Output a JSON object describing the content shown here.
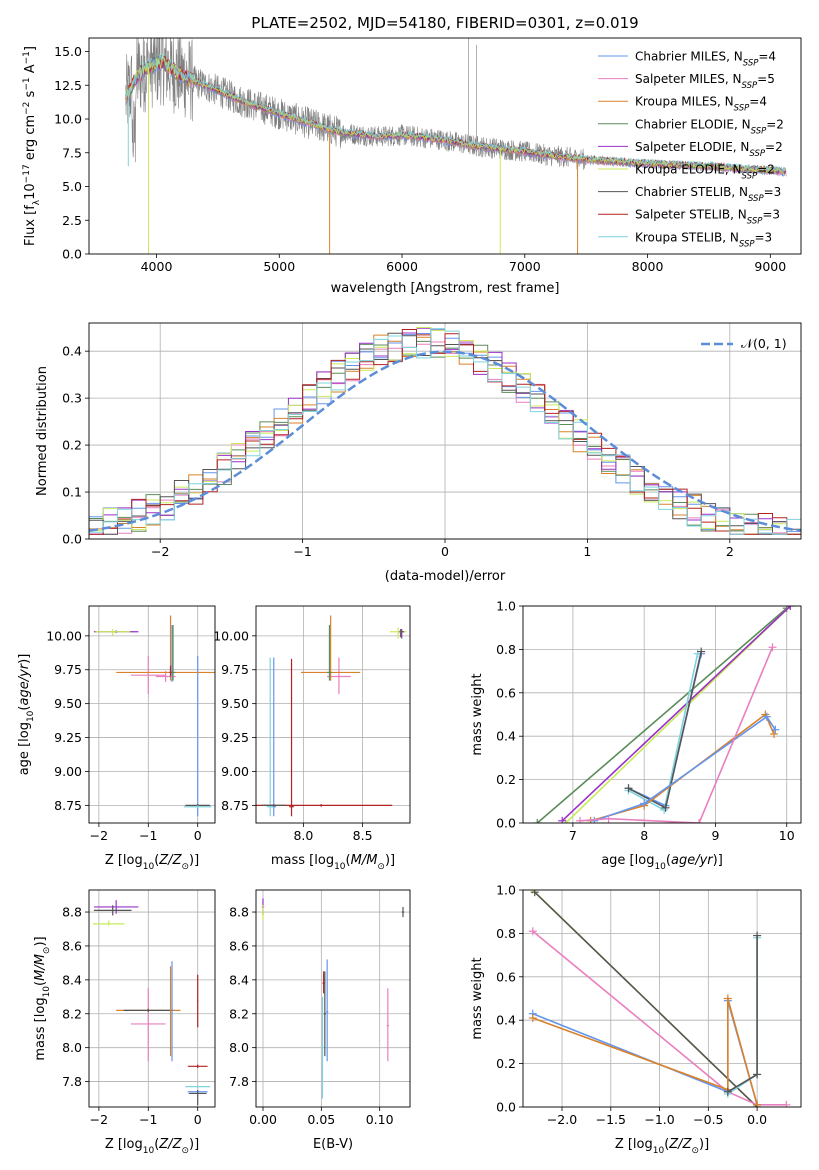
{
  "figure_title": "PLATE=2502, MJD=54180, FIBERID=0301, z=0.019",
  "colors": {
    "series": [
      "#6495ed",
      "#e97fbf",
      "#d9822b",
      "#5b8c5a",
      "#9b30c9",
      "#c9ea5a",
      "#555555",
      "#b22222",
      "#7fd3dd"
    ],
    "data": "#808080",
    "gaussian": "#5b8dd9",
    "grid": "#b0b0b0"
  },
  "chart_data": [
    {
      "id": "spectrum",
      "type": "line",
      "title": "PLATE=2502, MJD=54180, FIBERID=0301, z=0.019",
      "xlabel": "wavelength [Angstrom, rest frame]",
      "ylabel": "Flux [f_λ 10^-17 erg cm^-2 s^-1 A^-1]",
      "xlim": [
        3450,
        9250
      ],
      "ylim": [
        0,
        16
      ],
      "xticks": [
        "4000",
        "5000",
        "6000",
        "7000",
        "8000",
        "9000"
      ],
      "yticks": [
        "0.0",
        "2.5",
        "5.0",
        "7.5",
        "10.0",
        "12.5",
        "15.0"
      ],
      "legend_position": "top-right",
      "legend": [
        {
          "label": "Chabrier MILES, N",
          "sub": "SSP",
          "tail": "=4",
          "color": "#6495ed"
        },
        {
          "label": "Salpeter MILES, N",
          "sub": "SSP",
          "tail": "=5",
          "color": "#e97fbf"
        },
        {
          "label": "Kroupa MILES, N",
          "sub": "SSP",
          "tail": "=4",
          "color": "#d9822b"
        },
        {
          "label": "Chabrier ELODIE, N",
          "sub": "SSP",
          "tail": "=2",
          "color": "#5b8c5a"
        },
        {
          "label": "Salpeter ELODIE, N",
          "sub": "SSP",
          "tail": "=2",
          "color": "#9b30c9"
        },
        {
          "label": "Kroupa ELODIE, N",
          "sub": "SSP",
          "tail": "=2",
          "color": "#c9ea5a"
        },
        {
          "label": "Chabrier STELIB, N",
          "sub": "SSP",
          "tail": "=3",
          "color": "#555555"
        },
        {
          "label": "Salpeter STELIB, N",
          "sub": "SSP",
          "tail": "=3",
          "color": "#b22222"
        },
        {
          "label": "Kroupa STELIB, N",
          "sub": "SSP",
          "tail": "=3",
          "color": "#7fd3dd"
        }
      ],
      "continuum": [
        [
          3750,
          11.5
        ],
        [
          3850,
          13.3
        ],
        [
          3950,
          13.9
        ],
        [
          4050,
          14.2
        ],
        [
          4150,
          13.5
        ],
        [
          4300,
          12.8
        ],
        [
          4500,
          12.1
        ],
        [
          4700,
          11.3
        ],
        [
          5000,
          10.4
        ],
        [
          5200,
          9.8
        ],
        [
          5500,
          9.0
        ],
        [
          5800,
          8.7
        ],
        [
          6000,
          8.8
        ],
        [
          6300,
          8.5
        ],
        [
          6600,
          8.0
        ],
        [
          6900,
          7.7
        ],
        [
          7200,
          7.3
        ],
        [
          7500,
          7.0
        ],
        [
          7800,
          6.8
        ],
        [
          8200,
          6.6
        ],
        [
          8500,
          6.5
        ],
        [
          8800,
          6.3
        ],
        [
          9000,
          6.2
        ],
        [
          9100,
          6.1
        ]
      ],
      "model_breaks": [
        {
          "x": 3770,
          "to": 6.5,
          "color": "#7fd3dd"
        },
        {
          "x": 3935,
          "to": 0.0,
          "color": "#c9ea5a"
        },
        {
          "x": 5410,
          "to": 0.0,
          "color": "#d9822b"
        },
        {
          "x": 6800,
          "to": 0.0,
          "color": "#c9ea5a"
        },
        {
          "x": 7430,
          "to": 0.0,
          "color": "#d9822b"
        }
      ]
    },
    {
      "id": "residuals",
      "type": "step",
      "xlabel": "(data-model)/error",
      "ylabel": "Normed distribution",
      "xlim": [
        -2.5,
        2.5
      ],
      "ylim": [
        0,
        0.46
      ],
      "xticks": [
        "−2",
        "−1",
        "0",
        "1",
        "2"
      ],
      "yticks": [
        "0.0",
        "0.1",
        "0.2",
        "0.3",
        "0.4"
      ],
      "legend_position": "top-right",
      "legend_label": "𝒩(0, 1)",
      "gaussian": {
        "mean": 0,
        "sigma": 1
      },
      "bins": 50
    },
    {
      "id": "age_vs_Z",
      "type": "errorbar",
      "xlabel": "Z [log10(Z/Z⊙)]",
      "ylabel": "age  [log10(age/yr)]",
      "xlim": [
        -2.2,
        0.35
      ],
      "ylim": [
        8.62,
        10.22
      ],
      "xticks": [
        "−2",
        "−1",
        "0"
      ],
      "yticks": [
        "8.75",
        "9.00",
        "9.25",
        "9.50",
        "9.75",
        "10.00"
      ]
    },
    {
      "id": "age_vs_mass",
      "type": "errorbar",
      "xlabel": "mass [log10(M/M⊙)]",
      "ylabel": "",
      "xlim": [
        7.6,
        8.9
      ],
      "ylim": [
        8.62,
        10.22
      ],
      "xticks": [
        "8.0",
        "8.5"
      ],
      "yticks": [
        "8.75",
        "9.00",
        "9.25",
        "9.50",
        "9.75",
        "10.00"
      ]
    },
    {
      "id": "weight_vs_age",
      "type": "line",
      "xlabel": "age  [log10(age/yr)]",
      "ylabel": "mass weight",
      "xlim": [
        6.3,
        10.2
      ],
      "ylim": [
        0,
        1
      ],
      "xticks": [
        "7",
        "8",
        "9",
        "10"
      ],
      "yticks": [
        "0.0",
        "0.2",
        "0.4",
        "0.6",
        "0.8",
        "1.0"
      ]
    },
    {
      "id": "mass_vs_Z",
      "type": "errorbar",
      "xlabel": "Z [log10(Z/Z⊙)]",
      "ylabel": "mass [log10(M/M⊙)]",
      "xlim": [
        -2.2,
        0.35
      ],
      "ylim": [
        7.65,
        8.93
      ],
      "xticks": [
        "−2",
        "−1",
        "0"
      ],
      "yticks": [
        "7.8",
        "8.0",
        "8.2",
        "8.4",
        "8.6",
        "8.8"
      ]
    },
    {
      "id": "mass_vs_ebv",
      "type": "errorbar",
      "xlabel": "E(B-V)",
      "ylabel": "",
      "xlim": [
        -0.006,
        0.126
      ],
      "ylim": [
        7.65,
        8.93
      ],
      "xticks": [
        "0.00",
        "0.05",
        "0.10"
      ],
      "yticks": [
        "7.8",
        "8.0",
        "8.2",
        "8.4",
        "8.6",
        "8.8"
      ]
    },
    {
      "id": "weight_vs_Z",
      "type": "line",
      "xlabel": "Z [log10(Z/Z⊙)]",
      "ylabel": "mass weight",
      "xlim": [
        -2.4,
        0.45
      ],
      "ylim": [
        0,
        1
      ],
      "xticks": [
        "−2.0",
        "−1.5",
        "−1.0",
        "−0.5",
        "0.0"
      ],
      "yticks": [
        "0.0",
        "0.2",
        "0.4",
        "0.6",
        "0.8",
        "1.0"
      ]
    }
  ],
  "small_series": {
    "age_vs_Z": [
      {
        "c": 0,
        "x": 0.0,
        "y": 8.74,
        "xe": 0.01,
        "ye": [
          8.67,
          9.85
        ]
      },
      {
        "c": 0,
        "x": -0.52,
        "y": 9.74,
        "xe": 0.01,
        "ye": [
          9.66,
          10.08
        ]
      },
      {
        "c": 1,
        "x": -1.0,
        "y": 9.71,
        "xe": 0.35,
        "ye": [
          9.57,
          9.85
        ]
      },
      {
        "c": 1,
        "x": -0.65,
        "y": 9.7,
        "xe": 0.2,
        "ye": [
          9.66,
          9.74
        ]
      },
      {
        "c": 2,
        "x": -0.55,
        "y": 9.73,
        "xe": 1.1,
        "ye": [
          9.67,
          10.15
        ]
      },
      {
        "c": 3,
        "x": -0.5,
        "y": 9.73,
        "xe": 0.05,
        "ye": [
          9.67,
          10.08
        ]
      },
      {
        "c": 4,
        "x": -1.65,
        "y": 10.03,
        "xe": 0.45,
        "ye": [
          10.02,
          10.04
        ]
      },
      {
        "c": 5,
        "x": -1.72,
        "y": 10.03,
        "xe": 0.35,
        "ye": [
          10.0,
          10.05
        ]
      },
      {
        "c": 6,
        "x": 0.0,
        "y": 8.75,
        "xe": 0.25,
        "ye": [
          8.74,
          8.76
        ]
      },
      {
        "c": 8,
        "x": 0.0,
        "y": 8.74,
        "xe": 0.28,
        "ye": [
          8.73,
          8.75
        ]
      },
      {
        "c": 7,
        "x": -0.55,
        "y": 9.73,
        "xe": 0.02,
        "ye": [
          9.7,
          9.78
        ]
      }
    ],
    "age_vs_mass": [
      {
        "c": 0,
        "x": 7.75,
        "y": 8.74,
        "xe": 0.02,
        "ye": [
          8.67,
          9.84
        ]
      },
      {
        "c": 8,
        "x": 7.72,
        "y": 8.74,
        "xe": 0.03,
        "ye": [
          8.67,
          9.84
        ]
      },
      {
        "c": 7,
        "x": 7.9,
        "y": 8.74,
        "xe": 0.02,
        "ye": [
          8.67,
          9.83
        ]
      },
      {
        "c": 7,
        "x": 8.15,
        "y": 8.75,
        "xe": 0.6,
        "ye": [
          8.74,
          8.76
        ]
      },
      {
        "c": 6,
        "x": 7.75,
        "y": 8.75,
        "xe": 0.1,
        "ye": [
          8.74,
          8.76
        ]
      },
      {
        "c": 1,
        "x": 8.3,
        "y": 9.7,
        "xe": 0.1,
        "ye": [
          9.57,
          9.84
        ]
      },
      {
        "c": 2,
        "x": 8.23,
        "y": 9.73,
        "xe": 0.25,
        "ye": [
          9.67,
          10.15
        ]
      },
      {
        "c": 3,
        "x": 8.22,
        "y": 9.73,
        "xe": 0.02,
        "ye": [
          9.67,
          10.08
        ]
      },
      {
        "c": 4,
        "x": 8.82,
        "y": 10.03,
        "xe": 0.02,
        "ye": [
          9.99,
          10.05
        ]
      },
      {
        "c": 5,
        "x": 8.8,
        "y": 10.03,
        "xe": 0.07,
        "ye": [
          9.98,
          10.06
        ]
      },
      {
        "c": 6,
        "x": 8.83,
        "y": 10.03,
        "xe": 0.02,
        "ye": [
          9.98,
          10.05
        ]
      }
    ],
    "mass_vs_Z": [
      {
        "c": 4,
        "x": -1.65,
        "y": 8.83,
        "xe": 0.45,
        "ye": [
          8.79,
          8.87
        ]
      },
      {
        "c": 6,
        "x": -1.72,
        "y": 8.81,
        "xe": 0.38,
        "ye": [
          8.78,
          8.84
        ]
      },
      {
        "c": 5,
        "x": -1.8,
        "y": 8.73,
        "xe": 0.32,
        "ye": [
          8.72,
          8.75
        ]
      },
      {
        "c": 1,
        "x": -1.0,
        "y": 8.14,
        "xe": 0.35,
        "ye": [
          7.92,
          8.35
        ]
      },
      {
        "c": 2,
        "x": -1.0,
        "y": 8.22,
        "xe": 0.65,
        "ye": [
          8.21,
          8.23
        ]
      },
      {
        "c": 6,
        "x": -1.0,
        "y": 8.22,
        "xe": 0.5,
        "ye": [
          8.21,
          8.23
        ]
      },
      {
        "c": 0,
        "x": -0.52,
        "y": 8.2,
        "xe": 0.01,
        "ye": [
          7.92,
          8.51
        ]
      },
      {
        "c": 2,
        "x": -0.55,
        "y": 8.2,
        "xe": 0.01,
        "ye": [
          7.95,
          8.48
        ]
      },
      {
        "c": 7,
        "x": 0.0,
        "y": 8.28,
        "xe": 0.01,
        "ye": [
          8.12,
          8.43
        ]
      },
      {
        "c": 7,
        "x": 0.0,
        "y": 7.89,
        "xe": 0.2,
        "ye": [
          7.88,
          7.9
        ]
      },
      {
        "c": 8,
        "x": 0.0,
        "y": 7.77,
        "xe": 0.25,
        "ye": [
          7.76,
          7.78
        ]
      },
      {
        "c": 0,
        "x": 0.0,
        "y": 7.74,
        "xe": 0.2,
        "ye": [
          7.73,
          7.75
        ]
      },
      {
        "c": 6,
        "x": 0.0,
        "y": 7.73,
        "xe": 0.18,
        "ye": [
          7.66,
          7.75
        ]
      }
    ],
    "mass_vs_ebv": [
      {
        "c": 4,
        "x": 0.0,
        "y": 8.83,
        "xe": 0.001,
        "ye": [
          8.78,
          8.88
        ]
      },
      {
        "c": 5,
        "x": 0.0,
        "y": 8.79,
        "xe": 0.001,
        "ye": [
          8.75,
          8.84
        ]
      },
      {
        "c": 6,
        "x": 0.12,
        "y": 8.8,
        "xe": 0.001,
        "ye": [
          8.77,
          8.83
        ]
      },
      {
        "c": 1,
        "x": 0.107,
        "y": 8.13,
        "xe": 0.001,
        "ye": [
          7.92,
          8.35
        ]
      },
      {
        "c": 0,
        "x": 0.055,
        "y": 8.21,
        "xe": 0.001,
        "ye": [
          7.92,
          8.52
        ]
      },
      {
        "c": 7,
        "x": 0.052,
        "y": 8.38,
        "xe": 0.001,
        "ye": [
          8.32,
          8.45
        ]
      },
      {
        "c": 8,
        "x": 0.051,
        "y": 8.0,
        "xe": 0.001,
        "ye": [
          7.7,
          8.3
        ]
      },
      {
        "c": 6,
        "x": 0.053,
        "y": 8.2,
        "xe": 0.001,
        "ye": [
          7.95,
          8.45
        ]
      }
    ],
    "weight_vs_age": [
      {
        "c": 3,
        "pts": [
          [
            6.5,
            0.0
          ],
          [
            10.0,
            0.99
          ]
        ]
      },
      {
        "c": 5,
        "pts": [
          [
            6.9,
            0.0
          ],
          [
            10.05,
            1.0
          ]
        ]
      },
      {
        "c": 4,
        "pts": [
          [
            6.85,
            0.01
          ],
          [
            10.05,
            1.0
          ]
        ]
      },
      {
        "c": 0,
        "pts": [
          [
            7.78,
            0.16
          ],
          [
            8.3,
            0.08
          ],
          [
            8.8,
            0.78
          ]
        ]
      },
      {
        "c": 8,
        "pts": [
          [
            7.78,
            0.15
          ],
          [
            8.28,
            0.06
          ],
          [
            8.75,
            0.78
          ]
        ]
      },
      {
        "c": 6,
        "pts": [
          [
            7.78,
            0.16
          ],
          [
            8.3,
            0.07
          ],
          [
            8.8,
            0.79
          ]
        ]
      },
      {
        "c": 2,
        "pts": [
          [
            7.25,
            0.01
          ],
          [
            8.0,
            0.08
          ],
          [
            9.7,
            0.5
          ],
          [
            9.82,
            0.41
          ]
        ]
      },
      {
        "c": 0,
        "pts": [
          [
            7.3,
            0.01
          ],
          [
            8.0,
            0.09
          ],
          [
            9.72,
            0.49
          ],
          [
            9.84,
            0.43
          ]
        ]
      },
      {
        "c": 1,
        "pts": [
          [
            7.1,
            0.01
          ],
          [
            7.5,
            0.02
          ],
          [
            8.77,
            0.0
          ],
          [
            9.8,
            0.81
          ]
        ]
      }
    ],
    "weight_vs_Z": [
      {
        "c": 5,
        "pts": [
          [
            -2.3,
            1.0
          ],
          [
            0.0,
            0.0
          ]
        ]
      },
      {
        "c": 6,
        "pts": [
          [
            -2.28,
            0.99
          ],
          [
            0.0,
            0.0
          ]
        ]
      },
      {
        "c": 1,
        "pts": [
          [
            -2.3,
            0.81
          ],
          [
            -0.3,
            0.07
          ],
          [
            0.0,
            0.01
          ],
          [
            0.3,
            0.01
          ]
        ]
      },
      {
        "c": 0,
        "pts": [
          [
            -2.3,
            0.43
          ],
          [
            -0.3,
            0.07
          ],
          [
            -0.3,
            0.49
          ],
          [
            0.0,
            0.01
          ]
        ]
      },
      {
        "c": 2,
        "pts": [
          [
            -2.3,
            0.41
          ],
          [
            -0.3,
            0.08
          ],
          [
            -0.3,
            0.5
          ],
          [
            0.0,
            0.01
          ]
        ]
      },
      {
        "c": 8,
        "pts": [
          [
            -0.3,
            0.06
          ],
          [
            0.0,
            0.15
          ],
          [
            0.0,
            0.78
          ]
        ]
      },
      {
        "c": 6,
        "pts": [
          [
            -0.3,
            0.07
          ],
          [
            0.0,
            0.15
          ],
          [
            0.0,
            0.79
          ]
        ]
      }
    ]
  }
}
